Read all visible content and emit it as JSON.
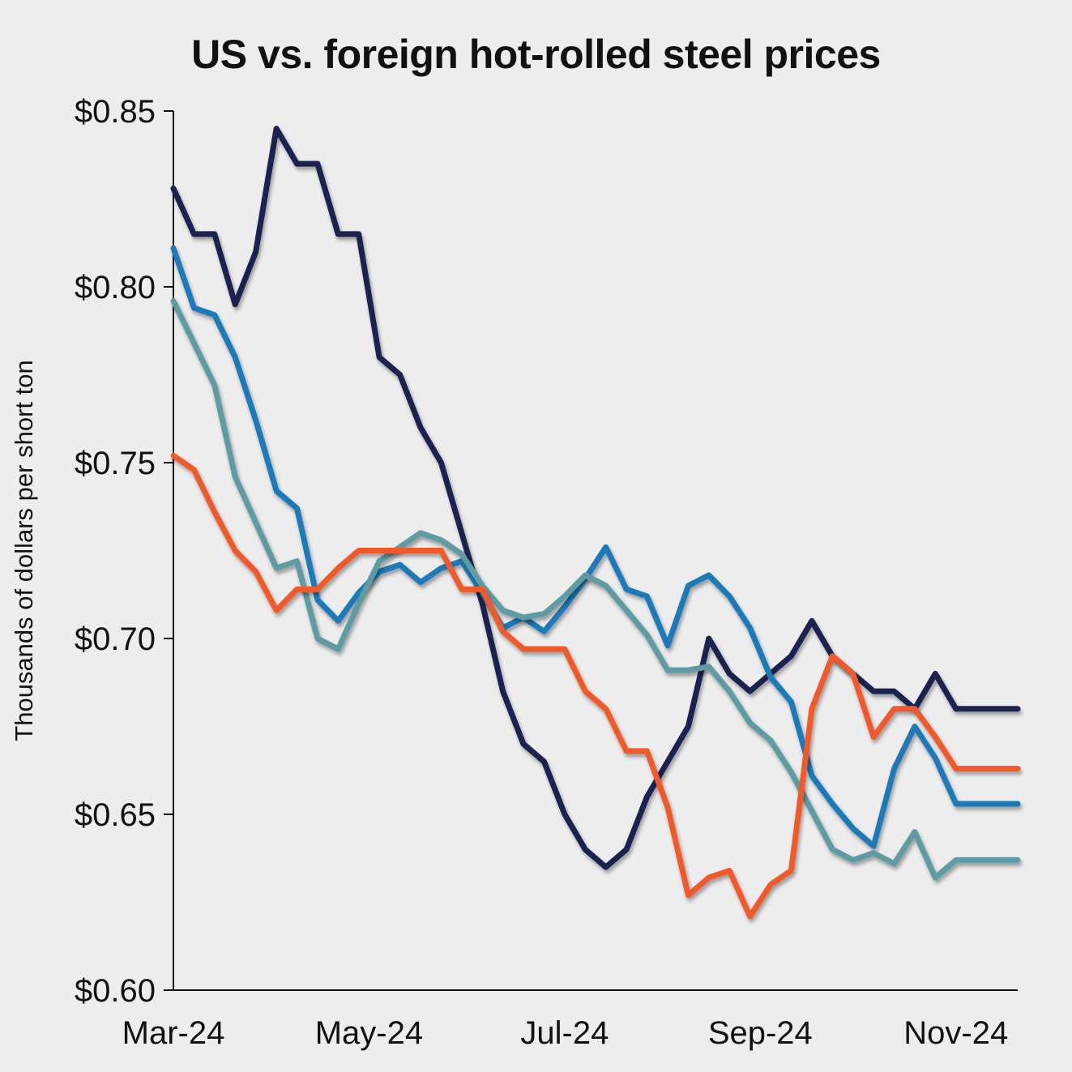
{
  "chart_data": {
    "type": "line",
    "title": "US vs. foreign hot-rolled steel prices",
    "xlabel": "",
    "ylabel": "Thousands of dollars per short ton",
    "ylim": [
      0.6,
      0.85
    ],
    "y_ticks": [
      "$0.60",
      "$0.65",
      "$0.70",
      "$0.75",
      "$0.80",
      "$0.85"
    ],
    "y_tick_values": [
      0.6,
      0.65,
      0.7,
      0.75,
      0.8,
      0.85
    ],
    "x_ticks": [
      "Mar-24",
      "May-24",
      "Jul-24",
      "Sep-24",
      "Nov-24"
    ],
    "x_tick_index": [
      0,
      9.5,
      19,
      28.5,
      38
    ],
    "x_count": 42,
    "grid": false,
    "legend": "none",
    "series": [
      {
        "color": "#1b2150",
        "values": [
          0.828,
          0.815,
          0.815,
          0.795,
          0.81,
          0.845,
          0.835,
          0.835,
          0.815,
          0.815,
          0.78,
          0.775,
          0.76,
          0.75,
          0.73,
          0.71,
          0.685,
          0.67,
          0.665,
          0.65,
          0.64,
          0.635,
          0.64,
          0.655,
          0.665,
          0.675,
          0.7,
          0.69,
          0.685,
          0.69,
          0.695,
          0.705,
          0.695,
          0.69,
          0.685,
          0.685,
          0.68,
          0.69,
          0.68,
          0.68,
          0.68,
          0.68
        ]
      },
      {
        "color": "#1f7ab9",
        "values": [
          0.811,
          0.794,
          0.792,
          0.78,
          0.762,
          0.742,
          0.737,
          0.711,
          0.705,
          0.713,
          0.719,
          0.721,
          0.716,
          0.72,
          0.722,
          0.713,
          0.703,
          0.706,
          0.702,
          0.709,
          0.717,
          0.726,
          0.714,
          0.712,
          0.698,
          0.715,
          0.718,
          0.712,
          0.703,
          0.689,
          0.682,
          0.661,
          0.653,
          0.646,
          0.641,
          0.663,
          0.675,
          0.666,
          0.653,
          0.653,
          0.653,
          0.653
        ]
      },
      {
        "color": "#5e9ba2",
        "values": [
          0.796,
          0.784,
          0.772,
          0.746,
          0.733,
          0.72,
          0.722,
          0.7,
          0.697,
          0.71,
          0.722,
          0.726,
          0.73,
          0.728,
          0.724,
          0.715,
          0.708,
          0.706,
          0.707,
          0.712,
          0.718,
          0.715,
          0.708,
          0.701,
          0.691,
          0.691,
          0.692,
          0.685,
          0.676,
          0.671,
          0.662,
          0.651,
          0.64,
          0.637,
          0.639,
          0.636,
          0.645,
          0.632,
          0.637,
          0.637,
          0.637,
          0.637
        ]
      },
      {
        "color": "#f05a2a",
        "values": [
          0.752,
          0.748,
          0.736,
          0.725,
          0.719,
          0.708,
          0.714,
          0.714,
          0.72,
          0.725,
          0.725,
          0.725,
          0.725,
          0.725,
          0.714,
          0.714,
          0.702,
          0.697,
          0.697,
          0.697,
          0.685,
          0.68,
          0.668,
          0.668,
          0.652,
          0.627,
          0.632,
          0.634,
          0.621,
          0.63,
          0.634,
          0.68,
          0.695,
          0.69,
          0.672,
          0.68,
          0.68,
          0.672,
          0.663,
          0.663,
          0.663,
          0.663
        ]
      }
    ]
  }
}
